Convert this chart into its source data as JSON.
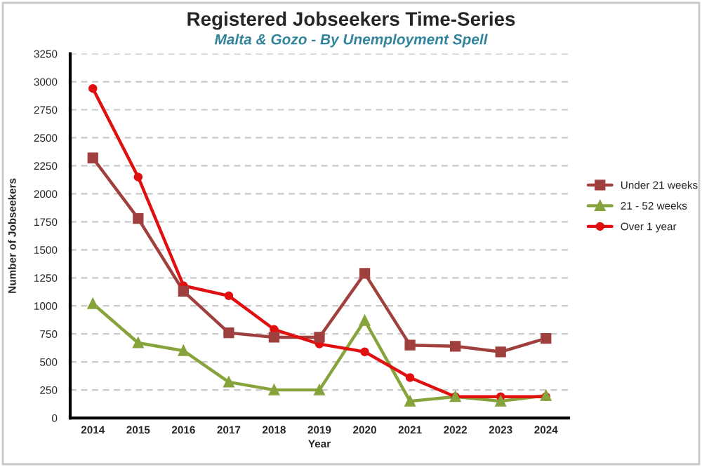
{
  "chart_data": {
    "type": "line",
    "title": "Registered Jobseekers Time-Series",
    "subtitle": "Malta & Gozo - By Unemployment Spell",
    "xlabel": "Year",
    "ylabel": "Number of Jobseekers",
    "categories": [
      "2014",
      "2015",
      "2016",
      "2017",
      "2018",
      "2019",
      "2020",
      "2021",
      "2022",
      "2023",
      "2024"
    ],
    "series": [
      {
        "name": "Under 21 weeks",
        "color": "#a0403e",
        "marker": "square",
        "values": [
          2320,
          1780,
          1130,
          760,
          720,
          720,
          1290,
          650,
          640,
          590,
          710
        ]
      },
      {
        "name": "21 - 52 weeks",
        "color": "#86a33c",
        "marker": "triangle",
        "values": [
          1020,
          670,
          600,
          320,
          250,
          250,
          870,
          150,
          190,
          150,
          200
        ]
      },
      {
        "name": "Over 1 year",
        "color": "#e01010",
        "marker": "circle",
        "values": [
          2940,
          2150,
          1180,
          1090,
          790,
          660,
          590,
          360,
          190,
          190,
          190
        ]
      }
    ],
    "ylim": [
      0,
      3250
    ],
    "yticks": [
      0,
      250,
      500,
      750,
      1000,
      1250,
      1500,
      1750,
      2000,
      2250,
      2500,
      2750,
      3000,
      3250
    ],
    "grid": "y",
    "legend": "right"
  }
}
